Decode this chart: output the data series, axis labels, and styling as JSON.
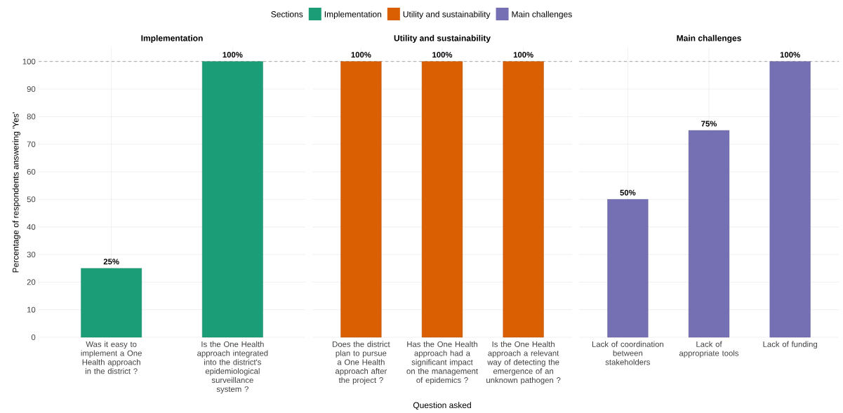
{
  "chart_data": [
    {
      "type": "bar",
      "title": "Implementation",
      "ylabel": "Percentage of respondents answering 'Yes'",
      "legend_title": "Sections",
      "legend": "top",
      "grid": true,
      "categories": [
        "Was it easy to implement a One Health approach in the district ?",
        "Is the One Health approach integrated into the district's epidemiological surveillance system ?"
      ],
      "series": [
        {
          "name": "Implementation",
          "color": "#1b9e77",
          "values": [
            25,
            100
          ],
          "value_labels": [
            "25%",
            "100%"
          ]
        }
      ],
      "ylim": [
        0,
        105
      ],
      "yticks": [
        0,
        10,
        20,
        30,
        40,
        50,
        60,
        70,
        80,
        90,
        100
      ],
      "ref_lines": [
        {
          "axis": "y",
          "value": 100,
          "color": "#808080",
          "line_style": "dashed"
        }
      ]
    },
    {
      "type": "bar",
      "title": "Utility and sustainability",
      "xlabel": "Question asked",
      "legend": "top",
      "grid": true,
      "tick_labels": "x",
      "categories": [
        "Does the district plan to pursue a One Health approach after the project ?",
        "Has the One Health approach had a significant impact on the management of epidemics ?",
        "Is the One Health approach a relevant way of detecting the emergence of an unknown pathogen ?"
      ],
      "series": [
        {
          "name": "Utility and sustainability",
          "color": "#d95f02",
          "values": [
            100,
            100,
            100
          ],
          "value_labels": [
            "100%",
            "100%",
            "100%"
          ]
        }
      ],
      "ylim": [
        0,
        105
      ],
      "yticks": [
        0,
        10,
        20,
        30,
        40,
        50,
        60,
        70,
        80,
        90,
        100
      ],
      "ref_lines": [
        {
          "axis": "y",
          "value": 100,
          "color": "#808080",
          "line_style": "dashed"
        }
      ]
    },
    {
      "type": "bar",
      "title": "Main challenges",
      "legend": "top",
      "grid": true,
      "tick_labels": "x",
      "categories": [
        "Lack of coordination between stakeholders",
        "Lack of appropriate tools",
        "Lack of funding"
      ],
      "series": [
        {
          "name": "Main challenges",
          "color": "#7570b3",
          "values": [
            50,
            75,
            100
          ],
          "value_labels": [
            "50%",
            "75%",
            "100%"
          ]
        }
      ],
      "ylim": [
        0,
        105
      ],
      "yticks": [
        0,
        10,
        20,
        30,
        40,
        50,
        60,
        70,
        80,
        90,
        100
      ],
      "ref_lines": [
        {
          "axis": "y",
          "value": 100,
          "color": "#808080",
          "line_style": "dashed"
        }
      ]
    }
  ]
}
